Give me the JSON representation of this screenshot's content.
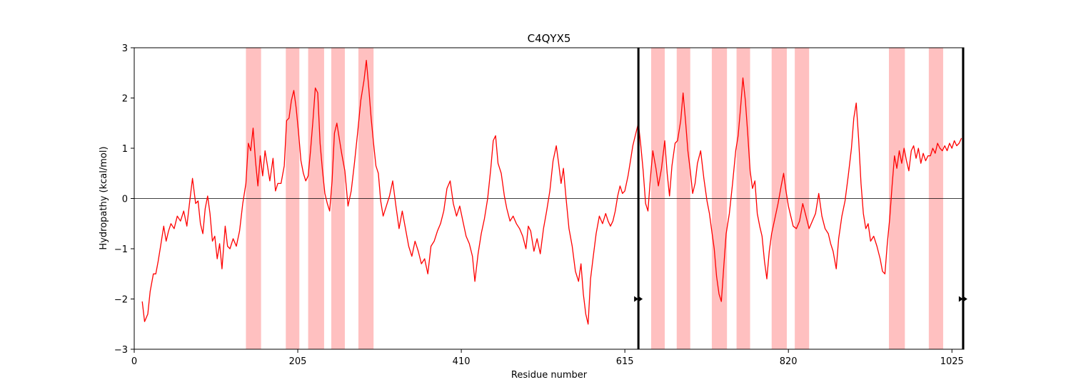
{
  "chart_data": {
    "type": "line",
    "title": "C4QYX5",
    "xlabel": "Residue number",
    "ylabel": "Hydropathy (kcal/mol)",
    "xlim": [
      0,
      1040
    ],
    "ylim": [
      -3,
      3
    ],
    "xticks": [
      0,
      205,
      410,
      615,
      820,
      1025
    ],
    "yticks": [
      -3,
      -2,
      -1,
      0,
      1,
      2,
      3
    ],
    "grid": false,
    "zero_line": true,
    "colors": {
      "line": "#ff0000",
      "shade": "#ffc0c0",
      "marker": "#000000"
    },
    "highlight_regions": [
      [
        140,
        159
      ],
      [
        190,
        207
      ],
      [
        218,
        238
      ],
      [
        247,
        264
      ],
      [
        281,
        300
      ],
      [
        648,
        665
      ],
      [
        680,
        697
      ],
      [
        724,
        743
      ],
      [
        755,
        772
      ],
      [
        799,
        818
      ],
      [
        828,
        846
      ],
      [
        946,
        966
      ],
      [
        996,
        1014
      ]
    ],
    "boundary_lines": [
      632,
      1039
    ],
    "markers": [
      {
        "x": 632,
        "y": -2
      },
      {
        "x": 1039,
        "y": -2
      }
    ],
    "series": [
      {
        "values": [
          [
            10,
            -2.05
          ],
          [
            13,
            -2.45
          ],
          [
            17,
            -2.3
          ],
          [
            20,
            -1.85
          ],
          [
            24,
            -1.5
          ],
          [
            27,
            -1.5
          ],
          [
            30,
            -1.25
          ],
          [
            33,
            -0.95
          ],
          [
            37,
            -0.55
          ],
          [
            40,
            -0.85
          ],
          [
            43,
            -0.65
          ],
          [
            46,
            -0.5
          ],
          [
            50,
            -0.6
          ],
          [
            54,
            -0.35
          ],
          [
            58,
            -0.45
          ],
          [
            62,
            -0.25
          ],
          [
            66,
            -0.55
          ],
          [
            70,
            0.0
          ],
          [
            73,
            0.4
          ],
          [
            77,
            -0.1
          ],
          [
            80,
            -0.05
          ],
          [
            83,
            -0.5
          ],
          [
            86,
            -0.7
          ],
          [
            89,
            -0.2
          ],
          [
            92,
            0.05
          ],
          [
            95,
            -0.3
          ],
          [
            98,
            -0.85
          ],
          [
            101,
            -0.75
          ],
          [
            104,
            -1.2
          ],
          [
            107,
            -0.9
          ],
          [
            110,
            -1.4
          ],
          [
            114,
            -0.55
          ],
          [
            117,
            -0.95
          ],
          [
            120,
            -1.0
          ],
          [
            124,
            -0.8
          ],
          [
            128,
            -0.95
          ],
          [
            132,
            -0.65
          ],
          [
            136,
            -0.1
          ],
          [
            140,
            0.3
          ],
          [
            143,
            1.1
          ],
          [
            146,
            0.95
          ],
          [
            149,
            1.4
          ],
          [
            152,
            0.75
          ],
          [
            155,
            0.25
          ],
          [
            158,
            0.85
          ],
          [
            161,
            0.45
          ],
          [
            164,
            0.95
          ],
          [
            167,
            0.65
          ],
          [
            170,
            0.35
          ],
          [
            174,
            0.8
          ],
          [
            177,
            0.15
          ],
          [
            180,
            0.3
          ],
          [
            184,
            0.3
          ],
          [
            188,
            0.65
          ],
          [
            191,
            1.55
          ],
          [
            194,
            1.6
          ],
          [
            197,
            1.95
          ],
          [
            200,
            2.15
          ],
          [
            203,
            1.8
          ],
          [
            206,
            1.3
          ],
          [
            209,
            0.75
          ],
          [
            212,
            0.5
          ],
          [
            215,
            0.35
          ],
          [
            218,
            0.45
          ],
          [
            221,
            0.95
          ],
          [
            224,
            1.55
          ],
          [
            227,
            2.2
          ],
          [
            230,
            2.1
          ],
          [
            233,
            1.1
          ],
          [
            236,
            0.55
          ],
          [
            239,
            0.1
          ],
          [
            242,
            -0.1
          ],
          [
            245,
            -0.25
          ],
          [
            248,
            0.35
          ],
          [
            251,
            1.3
          ],
          [
            254,
            1.5
          ],
          [
            257,
            1.2
          ],
          [
            260,
            0.9
          ],
          [
            264,
            0.55
          ],
          [
            268,
            -0.15
          ],
          [
            272,
            0.15
          ],
          [
            276,
            0.7
          ],
          [
            280,
            1.3
          ],
          [
            284,
            1.95
          ],
          [
            288,
            2.35
          ],
          [
            291,
            2.75
          ],
          [
            294,
            2.2
          ],
          [
            297,
            1.6
          ],
          [
            300,
            1.1
          ],
          [
            303,
            0.65
          ],
          [
            306,
            0.5
          ],
          [
            309,
            -0.05
          ],
          [
            312,
            -0.35
          ],
          [
            316,
            -0.15
          ],
          [
            320,
            0.05
          ],
          [
            324,
            0.35
          ],
          [
            328,
            -0.15
          ],
          [
            332,
            -0.6
          ],
          [
            336,
            -0.25
          ],
          [
            340,
            -0.6
          ],
          [
            344,
            -0.95
          ],
          [
            348,
            -1.15
          ],
          [
            352,
            -0.85
          ],
          [
            356,
            -1.05
          ],
          [
            360,
            -1.3
          ],
          [
            364,
            -1.2
          ],
          [
            368,
            -1.5
          ],
          [
            372,
            -0.95
          ],
          [
            376,
            -0.85
          ],
          [
            380,
            -0.65
          ],
          [
            384,
            -0.5
          ],
          [
            388,
            -0.25
          ],
          [
            392,
            0.2
          ],
          [
            396,
            0.35
          ],
          [
            400,
            -0.1
          ],
          [
            404,
            -0.35
          ],
          [
            408,
            -0.15
          ],
          [
            412,
            -0.45
          ],
          [
            416,
            -0.75
          ],
          [
            420,
            -0.9
          ],
          [
            424,
            -1.15
          ],
          [
            427,
            -1.65
          ],
          [
            431,
            -1.1
          ],
          [
            435,
            -0.7
          ],
          [
            439,
            -0.4
          ],
          [
            443,
            0.0
          ],
          [
            447,
            0.6
          ],
          [
            450,
            1.15
          ],
          [
            453,
            1.25
          ],
          [
            456,
            0.7
          ],
          [
            460,
            0.5
          ],
          [
            464,
            0.05
          ],
          [
            467,
            -0.2
          ],
          [
            471,
            -0.45
          ],
          [
            475,
            -0.35
          ],
          [
            479,
            -0.5
          ],
          [
            483,
            -0.6
          ],
          [
            487,
            -0.75
          ],
          [
            491,
            -1.0
          ],
          [
            494,
            -0.55
          ],
          [
            497,
            -0.65
          ],
          [
            501,
            -1.05
          ],
          [
            505,
            -0.8
          ],
          [
            509,
            -1.1
          ],
          [
            513,
            -0.6
          ],
          [
            517,
            -0.25
          ],
          [
            521,
            0.15
          ],
          [
            525,
            0.75
          ],
          [
            529,
            1.05
          ],
          [
            532,
            0.7
          ],
          [
            535,
            0.3
          ],
          [
            538,
            0.6
          ],
          [
            541,
            0.05
          ],
          [
            545,
            -0.6
          ],
          [
            549,
            -0.95
          ],
          [
            553,
            -1.45
          ],
          [
            557,
            -1.65
          ],
          [
            560,
            -1.3
          ],
          [
            563,
            -1.9
          ],
          [
            566,
            -2.3
          ],
          [
            569,
            -2.5
          ],
          [
            572,
            -1.6
          ],
          [
            575,
            -1.2
          ],
          [
            579,
            -0.7
          ],
          [
            583,
            -0.35
          ],
          [
            587,
            -0.5
          ],
          [
            591,
            -0.3
          ],
          [
            594,
            -0.45
          ],
          [
            597,
            -0.55
          ],
          [
            600,
            -0.45
          ],
          [
            603,
            -0.25
          ],
          [
            606,
            0.05
          ],
          [
            609,
            0.25
          ],
          [
            612,
            0.1
          ],
          [
            615,
            0.15
          ],
          [
            619,
            0.45
          ],
          [
            622,
            0.75
          ],
          [
            625,
            1.05
          ],
          [
            628,
            1.25
          ],
          [
            632,
            1.5
          ],
          [
            635,
            1.05
          ],
          [
            638,
            0.55
          ],
          [
            641,
            -0.1
          ],
          [
            644,
            -0.25
          ],
          [
            647,
            0.4
          ],
          [
            650,
            0.95
          ],
          [
            654,
            0.6
          ],
          [
            657,
            0.25
          ],
          [
            661,
            0.6
          ],
          [
            665,
            1.15
          ],
          [
            668,
            0.5
          ],
          [
            671,
            0.05
          ],
          [
            674,
            0.65
          ],
          [
            678,
            1.1
          ],
          [
            681,
            1.15
          ],
          [
            685,
            1.55
          ],
          [
            688,
            2.1
          ],
          [
            691,
            1.55
          ],
          [
            694,
            0.95
          ],
          [
            697,
            0.55
          ],
          [
            700,
            0.1
          ],
          [
            703,
            0.3
          ],
          [
            706,
            0.7
          ],
          [
            710,
            0.95
          ],
          [
            714,
            0.4
          ],
          [
            718,
            -0.05
          ],
          [
            721,
            -0.3
          ],
          [
            724,
            -0.65
          ],
          [
            727,
            -1.0
          ],
          [
            730,
            -1.55
          ],
          [
            733,
            -1.9
          ],
          [
            736,
            -2.05
          ],
          [
            739,
            -1.35
          ],
          [
            742,
            -0.7
          ],
          [
            746,
            -0.3
          ],
          [
            750,
            0.3
          ],
          [
            754,
            0.95
          ],
          [
            757,
            1.25
          ],
          [
            760,
            1.8
          ],
          [
            763,
            2.4
          ],
          [
            766,
            1.95
          ],
          [
            769,
            1.3
          ],
          [
            772,
            0.55
          ],
          [
            775,
            0.2
          ],
          [
            778,
            0.35
          ],
          [
            781,
            -0.3
          ],
          [
            784,
            -0.55
          ],
          [
            787,
            -0.75
          ],
          [
            790,
            -1.25
          ],
          [
            793,
            -1.6
          ],
          [
            796,
            -1.05
          ],
          [
            799,
            -0.7
          ],
          [
            803,
            -0.4
          ],
          [
            807,
            -0.1
          ],
          [
            811,
            0.25
          ],
          [
            814,
            0.5
          ],
          [
            817,
            0.15
          ],
          [
            820,
            -0.15
          ],
          [
            823,
            -0.35
          ],
          [
            826,
            -0.55
          ],
          [
            830,
            -0.6
          ],
          [
            834,
            -0.45
          ],
          [
            838,
            -0.1
          ],
          [
            842,
            -0.35
          ],
          [
            846,
            -0.6
          ],
          [
            850,
            -0.45
          ],
          [
            854,
            -0.3
          ],
          [
            858,
            0.1
          ],
          [
            862,
            -0.35
          ],
          [
            866,
            -0.6
          ],
          [
            870,
            -0.7
          ],
          [
            873,
            -0.9
          ],
          [
            876,
            -1.05
          ],
          [
            880,
            -1.4
          ],
          [
            883,
            -0.8
          ],
          [
            887,
            -0.35
          ],
          [
            891,
            -0.05
          ],
          [
            895,
            0.45
          ],
          [
            899,
            1.0
          ],
          [
            902,
            1.6
          ],
          [
            905,
            1.9
          ],
          [
            908,
            1.2
          ],
          [
            911,
            0.3
          ],
          [
            914,
            -0.3
          ],
          [
            917,
            -0.6
          ],
          [
            920,
            -0.5
          ],
          [
            923,
            -0.85
          ],
          [
            927,
            -0.75
          ],
          [
            931,
            -0.95
          ],
          [
            935,
            -1.2
          ],
          [
            938,
            -1.45
          ],
          [
            941,
            -1.5
          ],
          [
            944,
            -0.9
          ],
          [
            947,
            -0.4
          ],
          [
            950,
            0.25
          ],
          [
            953,
            0.85
          ],
          [
            956,
            0.6
          ],
          [
            959,
            0.95
          ],
          [
            962,
            0.7
          ],
          [
            965,
            1.0
          ],
          [
            968,
            0.75
          ],
          [
            971,
            0.55
          ],
          [
            974,
            0.95
          ],
          [
            977,
            1.05
          ],
          [
            980,
            0.8
          ],
          [
            983,
            1.0
          ],
          [
            986,
            0.7
          ],
          [
            989,
            0.9
          ],
          [
            992,
            0.75
          ],
          [
            995,
            0.85
          ],
          [
            998,
            0.85
          ],
          [
            1001,
            1.0
          ],
          [
            1004,
            0.9
          ],
          [
            1007,
            1.1
          ],
          [
            1010,
            1.0
          ],
          [
            1013,
            0.95
          ],
          [
            1016,
            1.05
          ],
          [
            1019,
            0.95
          ],
          [
            1022,
            1.1
          ],
          [
            1025,
            1.0
          ],
          [
            1028,
            1.15
          ],
          [
            1031,
            1.05
          ],
          [
            1034,
            1.1
          ],
          [
            1037,
            1.2
          ]
        ]
      }
    ]
  }
}
